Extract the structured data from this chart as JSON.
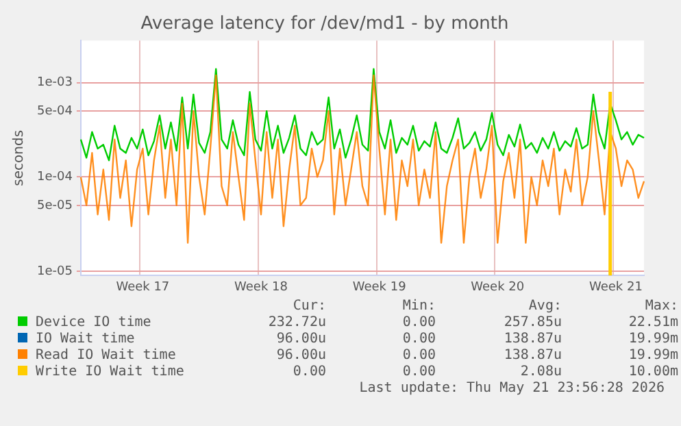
{
  "chart_data": {
    "type": "line",
    "title": "Average latency for /dev/md1 - by month",
    "ylabel": "seconds",
    "log": "y",
    "grid": true,
    "legend": "bottom",
    "marker": "none",
    "line_style": "solid",
    "ylim": [
      9e-06,
      0.0028
    ],
    "yticks": [
      {
        "value": 1e-05,
        "label": "1e-05"
      },
      {
        "value": 5e-05,
        "label": "5e-05"
      },
      {
        "value": 0.0001,
        "label": "1e-04"
      },
      {
        "value": 0.0005,
        "label": "5e-04"
      },
      {
        "value": 0.001,
        "label": "1e-03"
      }
    ],
    "categories": [
      null,
      null,
      null,
      null,
      null,
      null,
      null,
      null,
      null,
      null,
      null,
      "Week 17",
      null,
      null,
      null,
      null,
      null,
      null,
      null,
      null,
      null,
      null,
      null,
      null,
      null,
      null,
      null,
      null,
      null,
      null,
      null,
      null,
      "Week 18",
      null,
      null,
      null,
      null,
      null,
      null,
      null,
      null,
      null,
      null,
      null,
      null,
      null,
      null,
      null,
      null,
      null,
      null,
      null,
      null,
      "Week 19",
      null,
      null,
      null,
      null,
      null,
      null,
      null,
      null,
      null,
      null,
      null,
      null,
      null,
      null,
      null,
      null,
      null,
      null,
      null,
      null,
      "Week 20",
      null,
      null,
      null,
      null,
      null,
      null,
      null,
      null,
      null,
      null,
      null,
      null,
      null,
      null,
      null,
      null,
      null,
      null,
      null,
      null,
      "Week 21",
      null,
      null,
      null,
      null,
      null
    ],
    "series": [
      {
        "name": "Device IO time",
        "color": "#00cc00",
        "values": [
          0.00025,
          0.00016,
          0.0003,
          0.0002,
          0.00022,
          0.00015,
          0.00035,
          0.0002,
          0.00018,
          0.00026,
          0.0002,
          0.00032,
          0.00017,
          0.00024,
          0.00045,
          0.0002,
          0.00038,
          0.00019,
          0.0007,
          0.0002,
          0.00075,
          0.00023,
          0.00018,
          0.0003,
          0.0014,
          0.00025,
          0.0002,
          0.0004,
          0.00022,
          0.00017,
          0.0008,
          0.00025,
          0.00019,
          0.0005,
          0.0002,
          0.00035,
          0.00018,
          0.00026,
          0.00045,
          0.0002,
          0.00017,
          0.0003,
          0.00022,
          0.00025,
          0.0007,
          0.0002,
          0.00032,
          0.00016,
          0.00025,
          0.00045,
          0.00022,
          0.00019,
          0.0014,
          0.0003,
          0.0002,
          0.0004,
          0.00018,
          0.00026,
          0.00022,
          0.00035,
          0.00019,
          0.00024,
          0.00021,
          0.00038,
          0.0002,
          0.00018,
          0.00026,
          0.00042,
          0.0002,
          0.00023,
          0.0003,
          0.00019,
          0.00025,
          0.00048,
          0.00022,
          0.00017,
          0.00028,
          0.00021,
          0.00036,
          0.0002,
          0.00023,
          0.00018,
          0.00026,
          0.0002,
          0.0003,
          0.00019,
          0.00024,
          0.00021,
          0.00033,
          0.0002,
          0.00022,
          0.00075,
          0.0003,
          0.0002,
          0.0006,
          0.0004,
          0.00025,
          0.0003,
          0.00022,
          0.00028,
          0.00026
        ]
      },
      {
        "name": "IO Wait time",
        "color": "#0066b3",
        "values": [
          null,
          null,
          null,
          null,
          null,
          null,
          null,
          null,
          null,
          null,
          null,
          null,
          null,
          null,
          null,
          null,
          null,
          null,
          null,
          null,
          null,
          null,
          null,
          null,
          null,
          null,
          null,
          null,
          null,
          null,
          null,
          null,
          null,
          null,
          null,
          null,
          null,
          null,
          null,
          null,
          null,
          null,
          null,
          null,
          null,
          null,
          null,
          null,
          null,
          null,
          null,
          null,
          null,
          null,
          null,
          null,
          null,
          null,
          null,
          null,
          null,
          null,
          null,
          null,
          null,
          null,
          null,
          null,
          null,
          null,
          null,
          null,
          null,
          null,
          null,
          null,
          null,
          null,
          null,
          null,
          null,
          null,
          null,
          null,
          null,
          null,
          null,
          null,
          null,
          null,
          null,
          null,
          null,
          null,
          null,
          null,
          null,
          null,
          null,
          null,
          null
        ]
      },
      {
        "name": "Read IO Wait time",
        "color": "#ff8000",
        "values": [
          0.0001,
          5e-05,
          0.00018,
          4e-05,
          0.00012,
          3.5e-05,
          0.00025,
          6e-05,
          0.00015,
          3e-05,
          0.00012,
          0.0002,
          4e-05,
          0.00015,
          0.00035,
          6e-05,
          0.00025,
          5e-05,
          0.0006,
          2e-05,
          0.0005,
          0.0001,
          4e-05,
          0.0002,
          0.0012,
          8e-05,
          5e-05,
          0.0003,
          0.0001,
          3.5e-05,
          0.0006,
          0.00015,
          4e-05,
          0.0003,
          6e-05,
          0.00025,
          3e-05,
          0.00012,
          0.00035,
          5e-05,
          6e-05,
          0.0002,
          0.0001,
          0.00015,
          0.0005,
          4e-05,
          0.0002,
          5e-05,
          0.00012,
          0.0003,
          8e-05,
          5e-05,
          0.0012,
          0.0002,
          4e-05,
          0.00025,
          3.5e-05,
          0.00015,
          8e-05,
          0.00025,
          5e-05,
          0.00012,
          6e-05,
          0.0003,
          2e-05,
          8e-05,
          0.00015,
          0.00025,
          2e-05,
          0.0001,
          0.0002,
          6e-05,
          0.00012,
          0.00035,
          2e-05,
          9e-05,
          0.00018,
          6e-05,
          0.00025,
          2e-05,
          0.0001,
          5e-05,
          0.00015,
          8e-05,
          0.0002,
          4e-05,
          0.00012,
          7e-05,
          0.00025,
          5e-05,
          0.0001,
          0.0005,
          0.00015,
          4e-05,
          0.0003,
          0.0002,
          8e-05,
          0.00015,
          0.00012,
          6e-05,
          9e-05
        ]
      },
      {
        "name": "Write IO Wait time",
        "color": "#ffcc00",
        "type": "bar",
        "values": [
          null,
          null,
          null,
          null,
          null,
          null,
          null,
          null,
          null,
          null,
          null,
          null,
          null,
          null,
          null,
          null,
          null,
          null,
          null,
          null,
          null,
          null,
          null,
          null,
          null,
          null,
          null,
          null,
          null,
          null,
          null,
          null,
          null,
          null,
          null,
          null,
          null,
          null,
          null,
          null,
          null,
          null,
          null,
          null,
          null,
          null,
          null,
          null,
          null,
          null,
          null,
          null,
          null,
          null,
          null,
          null,
          null,
          null,
          null,
          null,
          null,
          null,
          null,
          null,
          null,
          null,
          null,
          null,
          null,
          null,
          null,
          null,
          null,
          null,
          null,
          null,
          null,
          null,
          null,
          null,
          null,
          null,
          null,
          null,
          null,
          null,
          null,
          null,
          null,
          null,
          null,
          null,
          null,
          null,
          0.0008,
          null,
          null,
          null,
          null,
          null,
          null
        ]
      }
    ],
    "annotations": [
      "Cur:",
      "Min:",
      "Avg:",
      "Max:",
      "232.72u",
      "0.00",
      "257.85u",
      "22.51m",
      "96.00u",
      "0.00",
      "138.87u",
      "19.99m",
      "96.00u",
      "0.00",
      "138.87u",
      "19.99m",
      "0.00",
      "0.00",
      "2.08u",
      "10.00m",
      "Last update: Thu May 21 23:56:28 2026"
    ]
  }
}
